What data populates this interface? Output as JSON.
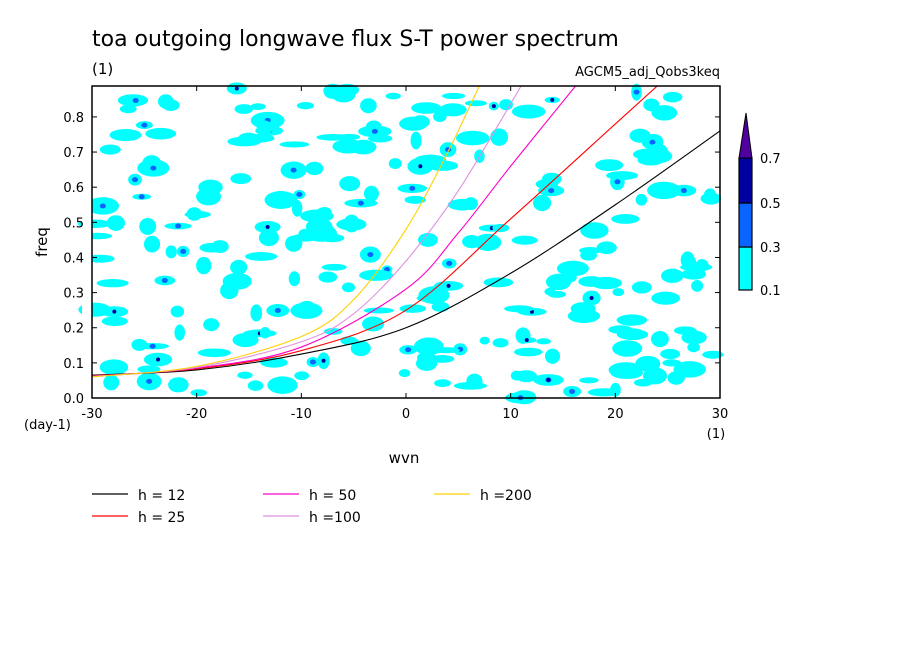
{
  "chart_data": {
    "type": "heatmap",
    "title": "toa outgoing longwave flux S-T power spectrum",
    "subtitle_left": "(1)",
    "subtitle_right": "AGCM5_adj_Qobs3keq",
    "xlabel": "wvn",
    "ylabel": "freq",
    "x_unit": "(1)",
    "y_unit": "(day-1)",
    "xlim": [
      -30,
      30
    ],
    "ylim": [
      0,
      0.888
    ],
    "xticks": [
      -30,
      -20,
      -10,
      0,
      10,
      20,
      30
    ],
    "xtick_labels": [
      "-30",
      "-20",
      "-10",
      "0",
      "10",
      "20",
      "30"
    ],
    "yticks": [
      0,
      0.1,
      0.2,
      0.3,
      0.4,
      0.5,
      0.6,
      0.7,
      0.8
    ],
    "ytick_labels": [
      "0.0",
      "0.1",
      "0.2",
      "0.3",
      "0.4",
      "0.5",
      "0.6",
      "0.7",
      "0.8"
    ],
    "colorbar": {
      "levels": [
        "0.1",
        "0.3",
        "0.5",
        "0.7"
      ],
      "colors": [
        "#00ffff",
        "#0a64ff",
        "#0000a0",
        "#50009f"
      ]
    },
    "series": [
      {
        "name": "h = 12",
        "color": "#000000",
        "x": [
          -30,
          -20,
          -10,
          0,
          10,
          20,
          30
        ],
        "y": [
          0.065,
          0.08,
          0.125,
          0.2,
          0.355,
          0.55,
          0.76
        ]
      },
      {
        "name": "h = 25",
        "color": "#ff0000",
        "x": [
          -30,
          -20,
          -10,
          0,
          10,
          20,
          24
        ],
        "y": [
          0.063,
          0.083,
          0.135,
          0.25,
          0.51,
          0.78,
          0.888
        ]
      },
      {
        "name": "h = 50",
        "color": "#ff00c8",
        "x": [
          -30,
          -20,
          -10,
          0,
          5,
          10,
          16.2
        ],
        "y": [
          0.062,
          0.085,
          0.145,
          0.31,
          0.47,
          0.66,
          0.888
        ]
      },
      {
        "name": "h =100",
        "color": "#e090e0",
        "x": [
          -30,
          -20,
          -10,
          -5,
          0,
          5,
          11
        ],
        "y": [
          0.061,
          0.087,
          0.16,
          0.24,
          0.39,
          0.59,
          0.888
        ]
      },
      {
        "name": "h =200",
        "color": "#ffd000",
        "x": [
          -30,
          -20,
          -10,
          -5,
          0,
          4,
          7
        ],
        "y": [
          0.06,
          0.09,
          0.175,
          0.28,
          0.48,
          0.7,
          0.888
        ]
      }
    ]
  }
}
